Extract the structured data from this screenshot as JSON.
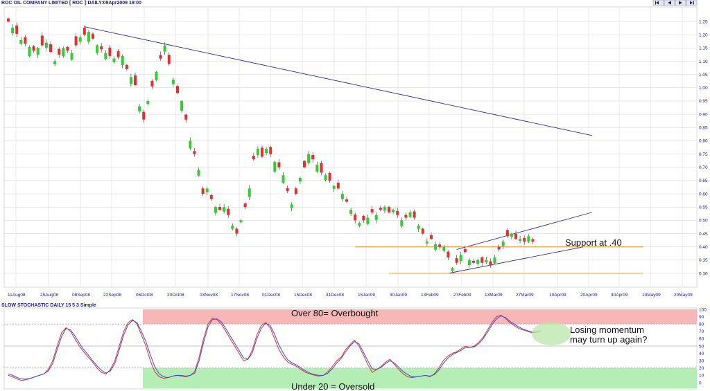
{
  "colors": {
    "up": "#33cc33",
    "down": "#e03030",
    "trend": "#2d2d96",
    "support": "#f29a3c",
    "k_line": "#e03030",
    "d_line": "#3050e0",
    "overbought": "#f7b7b7",
    "oversold": "#b5eeb5",
    "grid": "#d3d3d3",
    "axis_text": "#1a1a8c"
  },
  "nav": {
    "icons": [
      "first-icon",
      "prev-icon",
      "next-icon",
      "last-icon"
    ]
  },
  "chart_data": [
    {
      "type": "candlestick",
      "title": "ROC OIL COMPANY LIMITED [ ROC ]:DAILY:09Apr2009 19:00",
      "x_labels": [
        "11Aug08",
        "25Aug08",
        "08Sep08",
        "22Sep08",
        "06Oct08",
        "20Oct08",
        "03Nov08",
        "17Nov08",
        "01Dec08",
        "15Dec08",
        "31Dec08",
        "15Jan09",
        "30Jan09",
        "13Feb09",
        "27Feb09",
        "13Mar09",
        "27Mar09",
        "10Apr09",
        "20Apr09",
        "30Apr09",
        "10May09",
        "20May09"
      ],
      "y_ticks": [
        "1.25",
        "1.20",
        "1.15",
        "1.10",
        "1.05",
        "1.00",
        "0.95",
        "0.90",
        "0.85",
        "0.80",
        "0.75",
        "0.70",
        "0.65",
        "0.60",
        "0.55",
        "0.50",
        "0.45",
        "0.40",
        "0.35",
        "0.30"
      ],
      "ylim": [
        0.28,
        1.28
      ],
      "close_path": [
        [
          0,
          1.25
        ],
        [
          3,
          1.18
        ],
        [
          6,
          1.14
        ],
        [
          9,
          1.17
        ],
        [
          11,
          1.1
        ],
        [
          13,
          1.15
        ],
        [
          15,
          1.13
        ],
        [
          17,
          1.19
        ],
        [
          19,
          1.21
        ],
        [
          21,
          1.16
        ],
        [
          23,
          1.13
        ],
        [
          25,
          1.11
        ],
        [
          27,
          1.12
        ],
        [
          28,
          1.07
        ],
        [
          30,
          1.01
        ],
        [
          31,
          0.93
        ],
        [
          32,
          0.88
        ],
        [
          33,
          0.95
        ],
        [
          35,
          1.06
        ],
        [
          36,
          1.11
        ],
        [
          37,
          1.16
        ],
        [
          38,
          1.09
        ],
        [
          39,
          1.03
        ],
        [
          40,
          0.98
        ],
        [
          41,
          0.95
        ],
        [
          42,
          0.88
        ],
        [
          43,
          0.8
        ],
        [
          44,
          0.75
        ],
        [
          45,
          0.69
        ],
        [
          46,
          0.6
        ],
        [
          47,
          0.62
        ],
        [
          48,
          0.58
        ],
        [
          49,
          0.55
        ],
        [
          50,
          0.54
        ],
        [
          51,
          0.55
        ],
        [
          52,
          0.52
        ],
        [
          53,
          0.48
        ],
        [
          54,
          0.45
        ],
        [
          55,
          0.5
        ],
        [
          56,
          0.55
        ],
        [
          57,
          0.62
        ],
        [
          58,
          0.73
        ],
        [
          59,
          0.77
        ],
        [
          60,
          0.74
        ],
        [
          61,
          0.77
        ],
        [
          62,
          0.75
        ],
        [
          63,
          0.72
        ],
        [
          64,
          0.7
        ],
        [
          65,
          0.67
        ],
        [
          66,
          0.61
        ],
        [
          67,
          0.56
        ],
        [
          68,
          0.6
        ],
        [
          69,
          0.66
        ],
        [
          70,
          0.7
        ],
        [
          71,
          0.75
        ],
        [
          72,
          0.73
        ],
        [
          73,
          0.71
        ],
        [
          74,
          0.68
        ],
        [
          75,
          0.67
        ],
        [
          76,
          0.65
        ],
        [
          77,
          0.63
        ],
        [
          78,
          0.62
        ],
        [
          79,
          0.6
        ],
        [
          80,
          0.57
        ],
        [
          81,
          0.54
        ],
        [
          82,
          0.5
        ],
        [
          83,
          0.49
        ],
        [
          84,
          0.5
        ],
        [
          85,
          0.51
        ],
        [
          86,
          0.53
        ],
        [
          87,
          0.52
        ],
        [
          88,
          0.54
        ],
        [
          89,
          0.55
        ],
        [
          90,
          0.53
        ],
        [
          91,
          0.54
        ],
        [
          92,
          0.52
        ],
        [
          93,
          0.5
        ],
        [
          94,
          0.51
        ],
        [
          95,
          0.53
        ],
        [
          96,
          0.51
        ],
        [
          97,
          0.48
        ],
        [
          98,
          0.45
        ],
        [
          99,
          0.42
        ],
        [
          100,
          0.43
        ],
        [
          101,
          0.41
        ],
        [
          102,
          0.4
        ],
        [
          103,
          0.4
        ],
        [
          104,
          0.36
        ],
        [
          105,
          0.32
        ],
        [
          106,
          0.34
        ],
        [
          107,
          0.37
        ],
        [
          108,
          0.38
        ],
        [
          109,
          0.35
        ],
        [
          110,
          0.34
        ],
        [
          111,
          0.35
        ],
        [
          112,
          0.34
        ],
        [
          113,
          0.35
        ],
        [
          114,
          0.33
        ],
        [
          115,
          0.36
        ],
        [
          116,
          0.39
        ],
        [
          117,
          0.42
        ],
        [
          118,
          0.44
        ],
        [
          119,
          0.45
        ],
        [
          120,
          0.43
        ],
        [
          121,
          0.43
        ],
        [
          122,
          0.42
        ],
        [
          123,
          0.44
        ],
        [
          124,
          0.42
        ]
      ],
      "lines": [
        {
          "name": "downtrend",
          "from": [
            18,
            1.23
          ],
          "to": [
            138,
            0.82
          ],
          "color": "trend"
        },
        {
          "name": "upper channel",
          "from": [
            106,
            0.39
          ],
          "to": [
            138,
            0.53
          ],
          "color": "trend"
        },
        {
          "name": "lower channel",
          "from": [
            104,
            0.3
          ],
          "to": [
            136,
            0.4
          ],
          "color": "trend"
        },
        {
          "name": "support .40",
          "from": [
            82,
            0.4
          ],
          "to": [
            150,
            0.4
          ],
          "color": "support"
        },
        {
          "name": "support .30",
          "from": [
            90,
            0.3
          ],
          "to": [
            150,
            0.3
          ],
          "color": "support"
        }
      ],
      "annotations": [
        {
          "text": "Support at .40"
        }
      ]
    },
    {
      "type": "line",
      "title": "SLOW STOCHASTIC DAILY 15 5 3 Simple",
      "y_ticks": [
        "100",
        "90",
        "80",
        "70",
        "60",
        "50",
        "40",
        "30",
        "20",
        "10",
        "0"
      ],
      "ylim": [
        0,
        100
      ],
      "series": [
        {
          "values": [
            10,
            8,
            5,
            3,
            4,
            6,
            8,
            10,
            12,
            18,
            30,
            50,
            68,
            75,
            70,
            60,
            50,
            42,
            35,
            28,
            20,
            14,
            12,
            18,
            30,
            50,
            70,
            82,
            86,
            80,
            65,
            50,
            30,
            15,
            8,
            6,
            7,
            9,
            10,
            9,
            8,
            10,
            15,
            35,
            60,
            80,
            88,
            86,
            80,
            70,
            60,
            50,
            40,
            30,
            32,
            45,
            65,
            78,
            82,
            75,
            60,
            45,
            35,
            28,
            25,
            22,
            18,
            14,
            12,
            10,
            9,
            10,
            15,
            22,
            30,
            35,
            45,
            52,
            58,
            50,
            38,
            25,
            14,
            18,
            22,
            28,
            32,
            25,
            18,
            12,
            8,
            7,
            8,
            9,
            10,
            8,
            12,
            20,
            30,
            36,
            40,
            42,
            46,
            50,
            48,
            50,
            55,
            62,
            72,
            82,
            90,
            92,
            88,
            82,
            78,
            74,
            72,
            70,
            68,
            69,
            70
          ]
        },
        {
          "values": [
            12,
            10,
            7,
            5,
            5,
            6,
            8,
            10,
            12,
            16,
            26,
            45,
            63,
            74,
            72,
            64,
            54,
            45,
            38,
            30,
            23,
            17,
            13,
            16,
            26,
            45,
            65,
            79,
            85,
            82,
            70,
            56,
            38,
            22,
            12,
            8,
            7,
            9,
            10,
            10,
            9,
            10,
            13,
            30,
            55,
            76,
            86,
            87,
            83,
            74,
            64,
            54,
            44,
            34,
            32,
            41,
            60,
            74,
            81,
            78,
            66,
            51,
            40,
            31,
            27,
            24,
            20,
            16,
            13,
            11,
            10,
            10,
            13,
            19,
            27,
            33,
            42,
            50,
            56,
            53,
            42,
            30,
            19,
            18,
            21,
            26,
            30,
            27,
            21,
            15,
            11,
            8,
            8,
            9,
            10,
            9,
            11,
            17,
            26,
            33,
            38,
            41,
            44,
            48,
            48,
            49,
            53,
            60,
            69,
            79,
            87,
            91,
            89,
            84,
            80,
            76,
            73,
            71,
            69,
            69,
            70
          ]
        }
      ],
      "reference_lines": [
        20,
        80
      ],
      "zones": [
        {
          "from": 80,
          "to": 100,
          "label": "Over 80= Overbought"
        },
        {
          "from": 0,
          "to": 20,
          "label": "Under 20 = Oversold"
        }
      ],
      "annotations": [
        {
          "text": "Losing momentum"
        },
        {
          "text": "may turn up again?"
        }
      ]
    }
  ]
}
